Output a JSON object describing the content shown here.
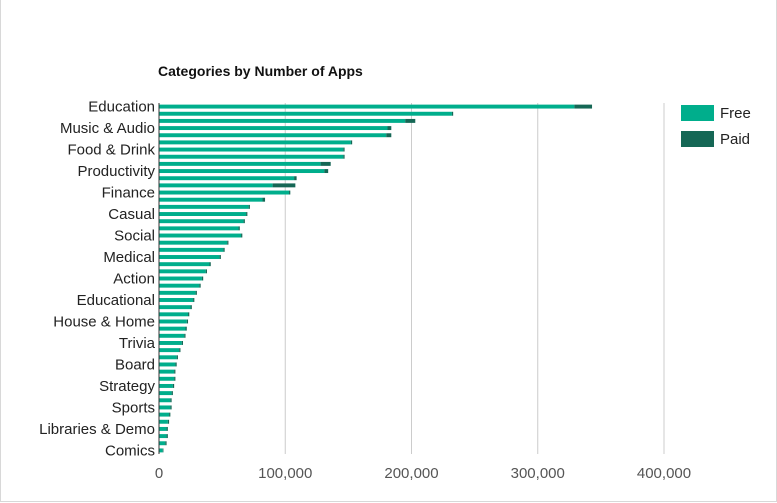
{
  "chart_data": {
    "type": "bar",
    "orientation": "horizontal",
    "stacked": true,
    "title": "Categories by Number of Apps",
    "xlabel": "",
    "ylabel": "",
    "xlim": [
      0,
      400000
    ],
    "xticks": [
      0,
      100000,
      200000,
      300000,
      400000
    ],
    "xtick_labels": [
      "0",
      "100,000",
      "200,000",
      "300,000",
      "400,000"
    ],
    "grid": true,
    "legend_position": "top-right",
    "categories": [
      "Education",
      "",
      "",
      "Music & Audio",
      "",
      "",
      "Food & Drink",
      "",
      "",
      "Productivity",
      "",
      "",
      "Finance",
      "",
      "",
      "Casual",
      "",
      "",
      "Social",
      "",
      "",
      "Medical",
      "",
      "",
      "Action",
      "",
      "",
      "Educational",
      "",
      "",
      "House & Home",
      "",
      "",
      "Trivia",
      "",
      "",
      "Board",
      "",
      "",
      "Strategy",
      "",
      "",
      "Sports",
      "",
      "",
      "Libraries & Demo",
      "",
      "",
      "Comics"
    ],
    "series": [
      {
        "name": "Free",
        "color": "#00ae8c",
        "values": [
          329000,
          232000,
          195000,
          181000,
          180000,
          152000,
          146000,
          146000,
          128000,
          131000,
          107000,
          90000,
          103000,
          82000,
          71000,
          69000,
          67000,
          63000,
          65000,
          54000,
          51000,
          48000,
          40000,
          37000,
          34000,
          32000,
          29000,
          27000,
          25000,
          23000,
          22000,
          21000,
          20000,
          18000,
          16000,
          14000,
          13000,
          12000,
          12000,
          11000,
          10000,
          9000,
          9000,
          8000,
          7000,
          6000,
          6000,
          5000,
          3000
        ]
      },
      {
        "name": "Paid",
        "color": "#156755",
        "values": [
          14000,
          1000,
          8000,
          3000,
          4000,
          1000,
          1000,
          1000,
          8000,
          3000,
          2000,
          18000,
          1000,
          2000,
          1000,
          1000,
          1000,
          1000,
          1000,
          1000,
          1000,
          1000,
          1000,
          1000,
          1000,
          1000,
          1000,
          1000,
          1000,
          1000,
          1000,
          1000,
          1000,
          1000,
          1000,
          1000,
          1000,
          1000,
          1000,
          1000,
          1000,
          1000,
          1000,
          1000,
          1000,
          1000,
          1000,
          1000,
          500
        ]
      }
    ]
  },
  "legend": {
    "items": [
      {
        "label": "Free",
        "color": "#00ae8c"
      },
      {
        "label": "Paid",
        "color": "#156755"
      }
    ]
  },
  "colors": {
    "gridline": "#cccccc",
    "axis": "#333333"
  }
}
